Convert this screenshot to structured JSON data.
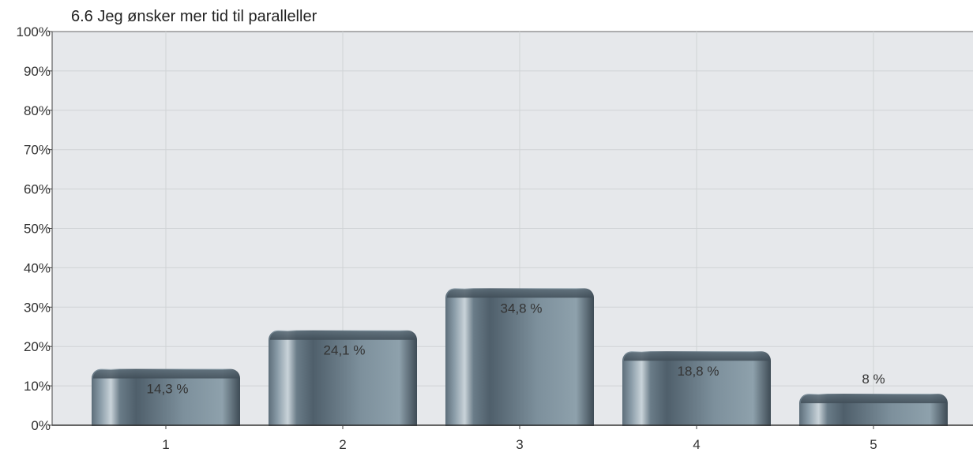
{
  "chart_data": {
    "type": "bar",
    "title": "6.6 Jeg ønsker mer tid til paralleller",
    "categories": [
      "1",
      "2",
      "3",
      "4",
      "5"
    ],
    "values": [
      14.3,
      24.1,
      34.8,
      18.8,
      8
    ],
    "data_labels": [
      "14,3 %",
      "24,1 %",
      "34,8 %",
      "18,8 %",
      "8 %"
    ],
    "yticks": [
      "0%",
      "10%",
      "20%",
      "30%",
      "40%",
      "50%",
      "60%",
      "70%",
      "80%",
      "90%",
      "100%"
    ],
    "ylim": [
      0,
      100
    ],
    "xlabel": "",
    "ylabel": "",
    "grid": true,
    "colors": {
      "bar": "#6f8390",
      "plot_bg": "#e6e8eb",
      "grid": "#d0d3d6"
    }
  }
}
